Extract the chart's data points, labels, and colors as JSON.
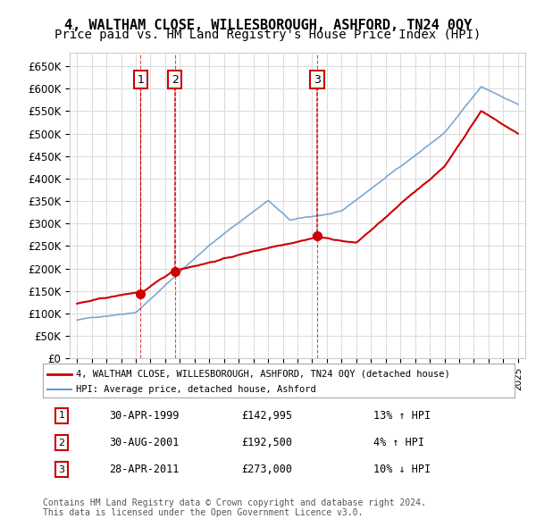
{
  "title": "4, WALTHAM CLOSE, WILLESBOROUGH, ASHFORD, TN24 0QY",
  "subtitle": "Price paid vs. HM Land Registry's House Price Index (HPI)",
  "ylim": [
    0,
    680000
  ],
  "yticks": [
    0,
    50000,
    100000,
    150000,
    200000,
    250000,
    300000,
    350000,
    400000,
    450000,
    500000,
    550000,
    600000,
    650000
  ],
  "ytick_labels": [
    "£0",
    "£50K",
    "£100K",
    "£150K",
    "£200K",
    "£250K",
    "£300K",
    "£350K",
    "£400K",
    "£450K",
    "£500K",
    "£550K",
    "£600K",
    "£650K"
  ],
  "sale_dates": [
    1999.33,
    2001.66,
    2011.33
  ],
  "sale_prices": [
    142995,
    192500,
    273000
  ],
  "sale_labels": [
    "1",
    "2",
    "3"
  ],
  "vline_dates": [
    1999.33,
    2001.66,
    2011.33
  ],
  "red_line_color": "#cc0000",
  "blue_line_color": "#6699cc",
  "grid_color": "#dddddd",
  "background_color": "#ffffff",
  "legend_label_red": "4, WALTHAM CLOSE, WILLESBOROUGH, ASHFORD, TN24 0QY (detached house)",
  "legend_label_blue": "HPI: Average price, detached house, Ashford",
  "table_data": [
    [
      "1",
      "30-APR-1999",
      "£142,995",
      "13% ↑ HPI"
    ],
    [
      "2",
      "30-AUG-2001",
      "£192,500",
      "4% ↑ HPI"
    ],
    [
      "3",
      "28-APR-2011",
      "£273,000",
      "10% ↓ HPI"
    ]
  ],
  "footer": "Contains HM Land Registry data © Crown copyright and database right 2024.\nThis data is licensed under the Open Government Licence v3.0.",
  "title_fontsize": 11,
  "subtitle_fontsize": 10
}
